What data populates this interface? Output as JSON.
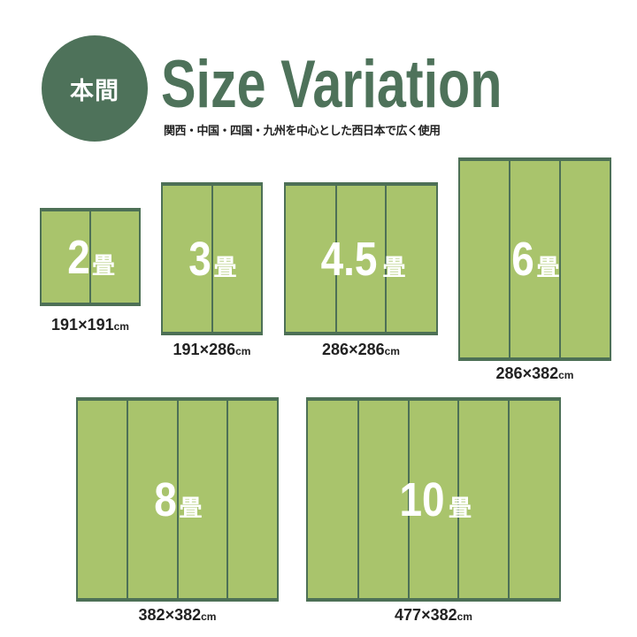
{
  "header": {
    "badge": "本間",
    "title": "Size Variation",
    "subtitle": "関西・中国・四国・九州を中心とした西日本で広く使用"
  },
  "colors": {
    "accent": "#4e725a",
    "mat_fill": "#a9c46c",
    "mat_border": "#4d7056"
  },
  "sizes": [
    {
      "number": "2",
      "unit": "畳",
      "dimensions": "191×191",
      "dim_unit": "cm",
      "panels": 2
    },
    {
      "number": "3",
      "unit": "畳",
      "dimensions": "191×286",
      "dim_unit": "cm",
      "panels": 2
    },
    {
      "number": "4.5",
      "unit": "畳",
      "dimensions": "286×286",
      "dim_unit": "cm",
      "panels": 3
    },
    {
      "number": "6",
      "unit": "畳",
      "dimensions": "286×382",
      "dim_unit": "cm",
      "panels": 3
    },
    {
      "number": "8",
      "unit": "畳",
      "dimensions": "382×382",
      "dim_unit": "cm",
      "panels": 4
    },
    {
      "number": "10",
      "unit": "畳",
      "dimensions": "477×382",
      "dim_unit": "cm",
      "panels": 5
    }
  ]
}
